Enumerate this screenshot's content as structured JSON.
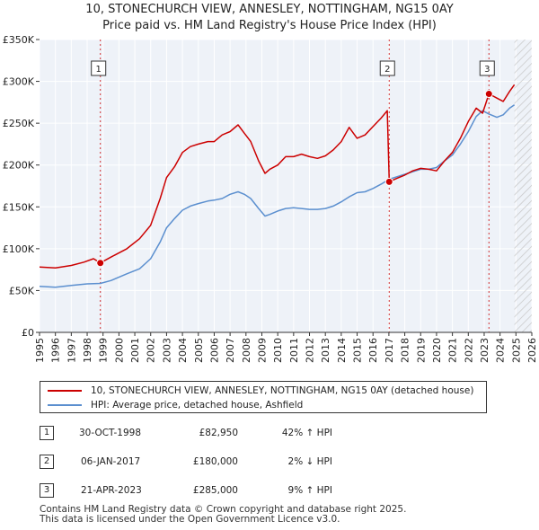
{
  "titles": {
    "line1": "10, STONECHURCH VIEW, ANNESLEY, NOTTINGHAM, NG15 0AY",
    "line2": "Price paid vs. HM Land Registry's House Price Index (HPI)"
  },
  "chart_data": {
    "type": "line",
    "xlim": [
      1995,
      2026
    ],
    "ylim": [
      0,
      350000
    ],
    "y_ticks": [
      0,
      50000,
      100000,
      150000,
      200000,
      250000,
      300000,
      350000
    ],
    "y_tick_labels": [
      "£0",
      "£50K",
      "£100K",
      "£150K",
      "£200K",
      "£250K",
      "£300K",
      "£350K"
    ],
    "x_ticks": [
      1995,
      1996,
      1997,
      1998,
      1999,
      2000,
      2001,
      2002,
      2003,
      2004,
      2005,
      2006,
      2007,
      2008,
      2009,
      2010,
      2011,
      2012,
      2013,
      2014,
      2015,
      2016,
      2017,
      2018,
      2019,
      2020,
      2021,
      2022,
      2023,
      2024,
      2025,
      2026
    ],
    "x_tick_labels": [
      "1995",
      "1996",
      "1997",
      "1998",
      "1999",
      "2000",
      "2001",
      "2002",
      "2003",
      "2004",
      "2005",
      "2006",
      "2007",
      "2008",
      "2009",
      "2010",
      "2011",
      "2012",
      "2013",
      "2014",
      "2015",
      "2016",
      "2017",
      "2018",
      "2019",
      "2020",
      "2021",
      "2022",
      "2023",
      "2024",
      "2025",
      "2026"
    ],
    "grid": true,
    "hatch_from_year": 2024.9,
    "series": [
      {
        "name": "10, STONECHURCH VIEW, ANNESLEY, NOTTINGHAM, NG15 0AY (detached house)",
        "color": "#cc0000",
        "x": [
          1995.0,
          1996.0,
          1997.0,
          1997.8,
          1998.4,
          1998.83,
          1999.5,
          2000.5,
          2001.3,
          2002.0,
          2002.6,
          2003.0,
          2003.5,
          2004.0,
          2004.5,
          2005.0,
          2005.6,
          2006.0,
          2006.5,
          2007.0,
          2007.5,
          2007.9,
          2008.3,
          2008.8,
          2009.2,
          2009.5,
          2010.0,
          2010.5,
          2011.0,
          2011.5,
          2012.0,
          2012.5,
          2013.0,
          2013.5,
          2014.0,
          2014.5,
          2015.0,
          2015.5,
          2016.0,
          2016.5,
          2016.9,
          2017.02,
          2017.5,
          2018.0,
          2018.5,
          2019.0,
          2019.5,
          2020.0,
          2020.5,
          2021.0,
          2021.5,
          2022.0,
          2022.5,
          2022.9,
          2023.3,
          2023.8,
          2024.2,
          2024.6,
          2024.9
        ],
        "y": [
          78000,
          77000,
          80000,
          84000,
          88000,
          82950,
          90000,
          100000,
          112000,
          128000,
          160000,
          185000,
          198000,
          215000,
          222000,
          225000,
          228000,
          228000,
          236000,
          240000,
          248000,
          238000,
          228000,
          205000,
          190000,
          195000,
          200000,
          210000,
          210000,
          213000,
          210000,
          208000,
          211000,
          218000,
          228000,
          245000,
          232000,
          236000,
          246000,
          256000,
          265000,
          180000,
          184000,
          188000,
          193000,
          196000,
          195000,
          193000,
          205000,
          215000,
          232000,
          252000,
          268000,
          262000,
          285000,
          280000,
          276000,
          288000,
          296000
        ]
      },
      {
        "name": "HPI: Average price, detached house, Ashfield",
        "color": "#5b8fcf",
        "x": [
          1995.0,
          1996.0,
          1997.0,
          1998.0,
          1998.83,
          1999.5,
          2000.5,
          2001.3,
          2002.0,
          2002.6,
          2003.0,
          2003.5,
          2004.0,
          2004.5,
          2005.0,
          2005.6,
          2006.0,
          2006.5,
          2007.0,
          2007.5,
          2007.9,
          2008.3,
          2008.8,
          2009.2,
          2009.5,
          2010.0,
          2010.5,
          2011.0,
          2011.5,
          2012.0,
          2012.5,
          2013.0,
          2013.5,
          2014.0,
          2014.5,
          2015.0,
          2015.5,
          2016.0,
          2016.5,
          2017.02,
          2017.5,
          2018.0,
          2018.5,
          2019.0,
          2019.5,
          2020.0,
          2020.5,
          2021.0,
          2021.5,
          2022.0,
          2022.5,
          2022.9,
          2023.3,
          2023.8,
          2024.2,
          2024.6,
          2024.9
        ],
        "y": [
          55000,
          54000,
          56000,
          58000,
          58500,
          62000,
          70000,
          76000,
          88000,
          108000,
          125000,
          136000,
          146000,
          151000,
          154000,
          157000,
          158000,
          160000,
          165000,
          168000,
          165000,
          160000,
          148000,
          139000,
          141000,
          145000,
          148000,
          149000,
          148000,
          147000,
          147000,
          148000,
          151000,
          156000,
          162000,
          167000,
          168000,
          172000,
          177000,
          183000,
          186000,
          189000,
          192000,
          195000,
          195000,
          197000,
          205000,
          212000,
          225000,
          240000,
          258000,
          265000,
          261000,
          257000,
          260000,
          268000,
          272000
        ]
      }
    ],
    "markers": [
      {
        "id": "1",
        "x": 1998.83,
        "y": 82950
      },
      {
        "id": "2",
        "x": 2017.02,
        "y": 180000
      },
      {
        "id": "3",
        "x": 2023.3,
        "y": 285000
      }
    ]
  },
  "legend": {
    "series1_label": "10, STONECHURCH VIEW, ANNESLEY, NOTTINGHAM, NG15 0AY (detached house)",
    "series2_label": "HPI: Average price, detached house, Ashfield"
  },
  "transactions": [
    {
      "id": "1",
      "date": "30-OCT-1998",
      "price": "£82,950",
      "hpi": "42% ↑ HPI"
    },
    {
      "id": "2",
      "date": "06-JAN-2017",
      "price": "£180,000",
      "hpi": "2% ↓ HPI"
    },
    {
      "id": "3",
      "date": "21-APR-2023",
      "price": "£285,000",
      "hpi": "9% ↑ HPI"
    }
  ],
  "footer": {
    "line1": "Contains HM Land Registry data © Crown copyright and database right 2025.",
    "line2": "This data is licensed under the Open Government Licence v3.0."
  },
  "colors": {
    "property": "#cc0000",
    "hpi": "#5b8fcf",
    "plot_bg": "#eef2f8",
    "grid": "#ffffff"
  }
}
